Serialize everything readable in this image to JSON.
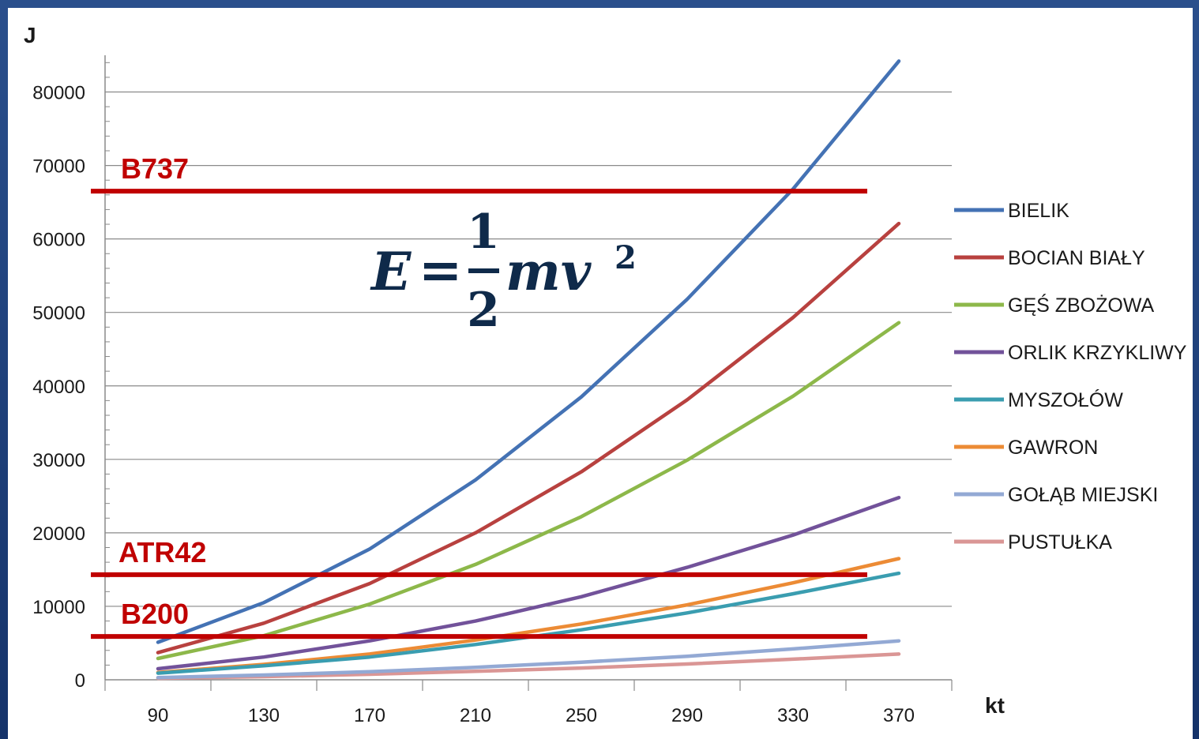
{
  "chart_data": {
    "type": "line",
    "ylabel": "J",
    "xlabel": "kt",
    "x": [
      90,
      130,
      170,
      210,
      250,
      290,
      330,
      370
    ],
    "ylim": [
      0,
      85000
    ],
    "yticks": [
      0,
      10000,
      20000,
      30000,
      40000,
      50000,
      60000,
      70000,
      80000
    ],
    "grid": "horizontal",
    "legend_position": "right",
    "series": [
      {
        "name": "BIELIK",
        "color": "#4472b4",
        "values": [
          5100,
          10500,
          17800,
          27200,
          38500,
          51800,
          66800,
          84200
        ]
      },
      {
        "name": "BOCIAN BIAŁY",
        "color": "#b8413f",
        "values": [
          3700,
          7700,
          13100,
          20000,
          28300,
          38100,
          49300,
          62100
        ]
      },
      {
        "name": "GĘŚ ZBOŻOWA",
        "color": "#8db84a",
        "values": [
          2900,
          6000,
          10300,
          15700,
          22200,
          29900,
          38600,
          48600
        ]
      },
      {
        "name": "ORLIK KRZYKLIWY",
        "color": "#72529a",
        "values": [
          1500,
          3100,
          5300,
          8000,
          11300,
          15300,
          19700,
          24800
        ]
      },
      {
        "name": "MYSZOŁÓW",
        "color": "#3a9db0",
        "values": [
          900,
          1900,
          3100,
          4800,
          6800,
          9100,
          11700,
          14500
        ]
      },
      {
        "name": "GAWRON",
        "color": "#ec8b35",
        "values": [
          1000,
          2100,
          3500,
          5400,
          7600,
          10200,
          13200,
          16500
        ]
      },
      {
        "name": "GOŁĄB MIEJSKI",
        "color": "#93a9d4",
        "values": [
          300,
          650,
          1100,
          1700,
          2400,
          3200,
          4200,
          5300
        ]
      },
      {
        "name": "PUSTUŁKA",
        "color": "#da9695",
        "values": [
          200,
          430,
          750,
          1150,
          1600,
          2150,
          2800,
          3500
        ]
      }
    ],
    "reference_lines": [
      {
        "label": "B737",
        "value": 66500,
        "color": "#c00000"
      },
      {
        "label": "ATR42",
        "value": 14300,
        "color": "#c00000"
      },
      {
        "label": "B200",
        "value": 5900,
        "color": "#c00000"
      }
    ],
    "annotation": {
      "lhs": "E",
      "equals": "=",
      "numerator": "1",
      "denominator": "2",
      "rhs": "mv",
      "exponent": "2"
    }
  }
}
